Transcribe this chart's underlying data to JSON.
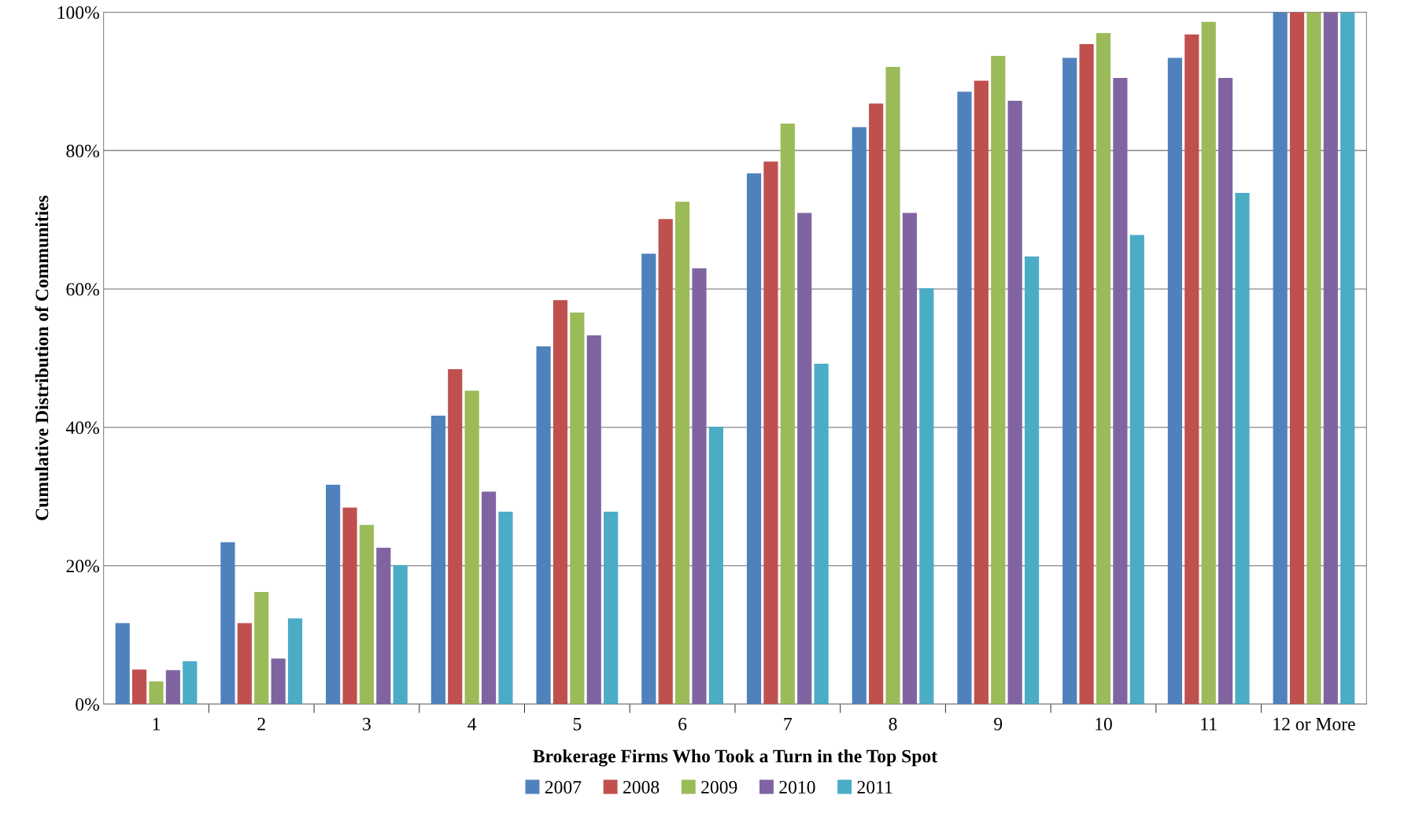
{
  "chart_data": {
    "type": "bar",
    "xlabel": "Brokerage Firms Who Took a Turn in the Top Spot",
    "ylabel": "Cumulative Distribution of Communities",
    "categories": [
      "1",
      "2",
      "3",
      "4",
      "5",
      "6",
      "7",
      "8",
      "9",
      "10",
      "11",
      "12 or More"
    ],
    "series": [
      {
        "name": "2007",
        "color": "#4f81bd",
        "values": [
          11.7,
          23.4,
          31.7,
          41.7,
          51.7,
          65.1,
          76.7,
          83.4,
          88.5,
          93.4,
          93.4,
          100
        ]
      },
      {
        "name": "2008",
        "color": "#c0504d",
        "values": [
          5.0,
          11.7,
          28.4,
          48.4,
          58.4,
          70.1,
          78.4,
          86.8,
          90.1,
          95.4,
          96.8,
          100
        ]
      },
      {
        "name": "2009",
        "color": "#9bbb59",
        "values": [
          3.3,
          16.2,
          25.9,
          45.3,
          56.6,
          72.6,
          83.9,
          92.1,
          93.7,
          97.0,
          98.6,
          100
        ]
      },
      {
        "name": "2010",
        "color": "#8064a2",
        "values": [
          4.9,
          6.6,
          22.6,
          30.7,
          53.3,
          63.0,
          71.0,
          71.0,
          87.2,
          90.5,
          90.5,
          100
        ]
      },
      {
        "name": "2011",
        "color": "#4bacc6",
        "values": [
          6.2,
          12.4,
          20.1,
          27.8,
          27.8,
          40.1,
          49.2,
          60.1,
          64.7,
          67.8,
          73.9,
          100
        ]
      }
    ],
    "ylim": [
      0,
      100
    ],
    "yticks": [
      {
        "value": 0,
        "label": "0%"
      },
      {
        "value": 20,
        "label": "20%"
      },
      {
        "value": 40,
        "label": "40%"
      },
      {
        "value": 60,
        "label": "60%"
      },
      {
        "value": 80,
        "label": "80%"
      },
      {
        "value": 100,
        "label": "100%"
      }
    ],
    "grid": "y",
    "legend": "bottom"
  }
}
